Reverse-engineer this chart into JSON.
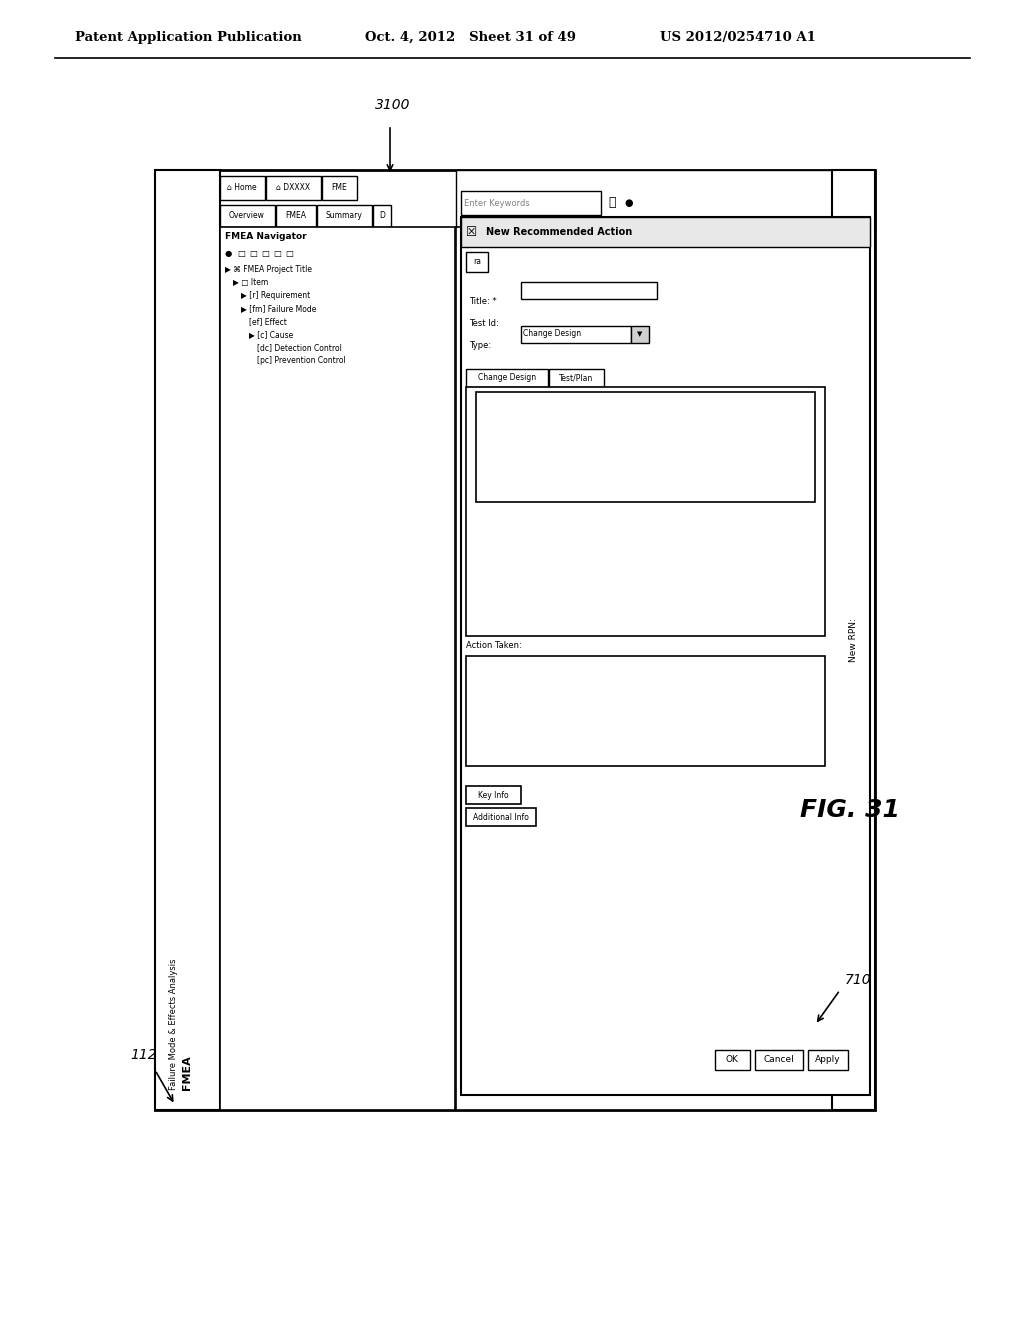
{
  "background_color": "#ffffff",
  "header_text_left": "Patent Application Publication",
  "header_text_mid": "Oct. 4, 2012   Sheet 31 of 49",
  "header_text_right": "US 2012/0254710 A1",
  "fig_label": "FIG. 31",
  "ref_3100": "3100",
  "ref_710": "710",
  "ref_112": "112"
}
